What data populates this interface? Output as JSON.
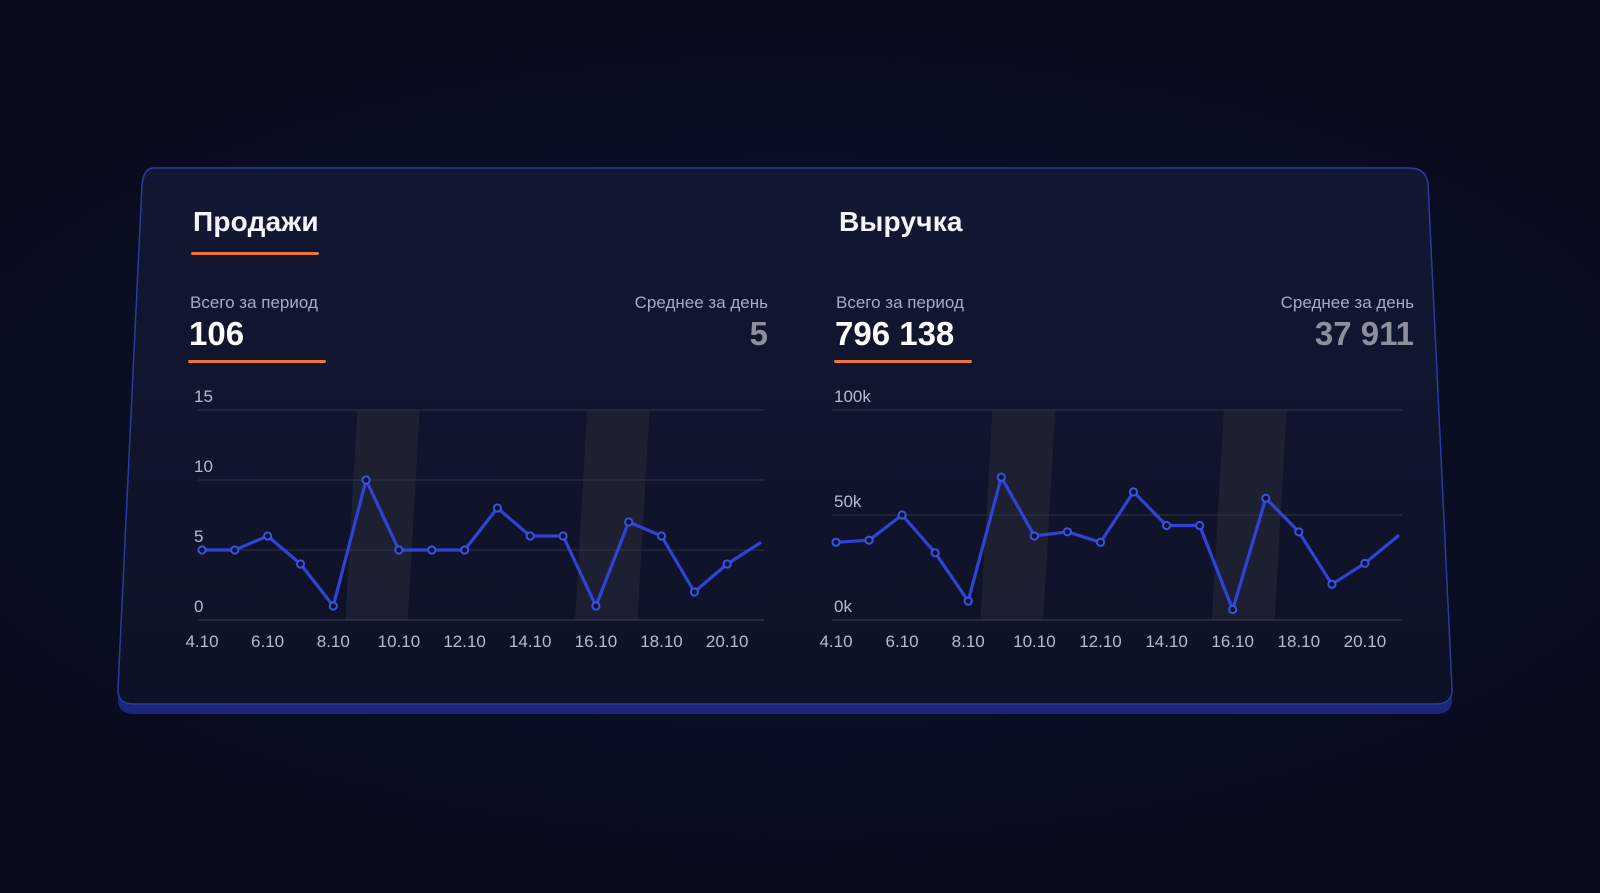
{
  "sections": [
    {
      "title": "Продажи",
      "total_label": "Всего за период",
      "total_value": "106",
      "avg_label": "Среднее за день",
      "avg_value": "5"
    },
    {
      "title": "Выручка",
      "total_label": "Всего за период",
      "total_value": "796 138",
      "avg_label": "Среднее за день",
      "avg_value": "37 911"
    }
  ],
  "colors": {
    "line": "#2f44d6",
    "accent": "#f0743a",
    "panel": "#10152a",
    "panel_border": "#2b3aa0",
    "weekend_band": "#1e2233"
  },
  "chart_data": [
    {
      "type": "line",
      "title": "Продажи",
      "x": [
        "4.10",
        "5.10",
        "6.10",
        "7.10",
        "8.10",
        "9.10",
        "10.10",
        "11.10",
        "12.10",
        "13.10",
        "14.10",
        "15.10",
        "16.10",
        "17.10",
        "18.10",
        "19.10",
        "20.10",
        "21.10"
      ],
      "x_tick_labels": [
        "4.10",
        "6.10",
        "8.10",
        "10.10",
        "12.10",
        "14.10",
        "16.10",
        "18.10",
        "20.10"
      ],
      "series": [
        {
          "values": [
            5,
            5,
            6,
            4,
            1,
            10,
            5,
            5,
            5,
            8,
            6,
            6,
            1,
            7,
            6,
            2,
            4,
            5.5
          ]
        }
      ],
      "ylim": [
        0,
        15
      ],
      "y_ticks": [
        "0",
        "5",
        "10",
        "15"
      ],
      "highlight_bands": [
        [
          "9.10",
          "10.10"
        ],
        [
          "16.10",
          "17.10"
        ]
      ],
      "grid": true
    },
    {
      "type": "line",
      "title": "Выручка",
      "x": [
        "4.10",
        "5.10",
        "6.10",
        "7.10",
        "8.10",
        "9.10",
        "10.10",
        "11.10",
        "12.10",
        "13.10",
        "14.10",
        "15.10",
        "16.10",
        "17.10",
        "18.10",
        "19.10",
        "20.10",
        "21.10"
      ],
      "x_tick_labels": [
        "4.10",
        "6.10",
        "8.10",
        "10.10",
        "12.10",
        "14.10",
        "16.10",
        "18.10",
        "20.10"
      ],
      "series": [
        {
          "values": [
            37000,
            38000,
            50000,
            32000,
            9000,
            68000,
            40000,
            42000,
            37000,
            61000,
            45000,
            45000,
            5000,
            58000,
            42000,
            17000,
            27000,
            40000
          ]
        }
      ],
      "ylim": [
        0,
        100000
      ],
      "y_ticks": [
        "0k",
        "50k",
        "100k"
      ],
      "highlight_bands": [
        [
          "9.10",
          "10.10"
        ],
        [
          "16.10",
          "17.10"
        ]
      ],
      "grid": true
    }
  ]
}
